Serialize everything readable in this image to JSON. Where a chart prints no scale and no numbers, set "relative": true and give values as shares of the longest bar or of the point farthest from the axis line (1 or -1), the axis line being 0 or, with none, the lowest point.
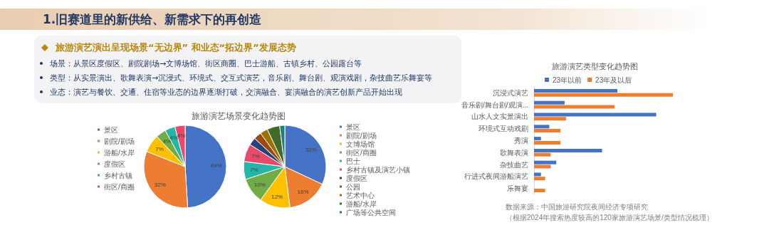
{
  "chart_data": [
    {
      "type": "other",
      "title": "1.旧赛道里的新供给、新需求下的再创造",
      "subtitle": "旅游演艺演出呈现场景“无边界” 和业态“拓边界”发展态势",
      "annotations": [
        "场景：从景区度假区、剧院剧场→文博场馆、街区商圈、巴士游船、古镇乡村、公园露台等",
        "类型：从实景演出、歌舞表演→沉浸式、环境式、交互式演艺，音乐剧、舞台剧、观演戏剧，杂技曲艺乐舞宴等",
        "业态：演艺与餐饮、交通、住宿等业态的边界逐渐打破，交演融合、宴演融合的演艺创新产品开始出现"
      ]
    },
    {
      "type": "pie",
      "title": "旅游演艺场景变化趋势图",
      "legend": "left",
      "categories": [
        "景区",
        "剧院/剧场",
        "游船/水岸",
        "度假区",
        "乡村古镇",
        "街区/商圈"
      ],
      "values": [
        49,
        32,
        7,
        4,
        4,
        4
      ],
      "colors": [
        "#4472c4",
        "#ed7d31",
        "#ffc000",
        "#70ad47",
        "#26b5a8",
        "#e94a6b"
      ],
      "value_labels": [
        "49%",
        "32%",
        "7%",
        "4%",
        "4%",
        "4%"
      ]
    },
    {
      "type": "pie",
      "legend": "right",
      "categories": [
        "景区",
        "剧院/剧场",
        "文博场馆",
        "街区/商圈",
        "巴士",
        "乡村古镇及演艺小镇",
        "度假区",
        "公园",
        "艺术中心",
        "游船/水岸",
        "广场等公共空间"
      ],
      "values": [
        32,
        16,
        12,
        10,
        7,
        7,
        3,
        3,
        3,
        5,
        2
      ],
      "value_labels": [
        "32%",
        "16%",
        "12%",
        "10%",
        "7%",
        "7%",
        null,
        null,
        null,
        null,
        null
      ],
      "colors": [
        "#4472c4",
        "#ed7d31",
        "#ffc000",
        "#70ad47",
        "#26b5a8",
        "#e94a6b",
        "#264478",
        "#9e480e",
        "#997300",
        "#43682b",
        "#1f7f7a"
      ]
    },
    {
      "type": "bar",
      "orientation": "horizontal",
      "relative": true,
      "title": "旅游演艺类型变化趋势图",
      "legend": "top",
      "categories": [
        "沉浸式演艺",
        "音乐剧/舞台剧/观演...",
        "山水人文实景演出",
        "环境式互动戏剧",
        "秀演",
        "歌舞表演",
        "杂技曲艺",
        "行进式夜间游船演艺",
        "乐舞宴"
      ],
      "series": [
        {
          "name": "23年以前",
          "color": "#4472c4",
          "values": [
            0.6,
            0.22,
            0.88,
            0.11,
            0.05,
            0.49,
            0.16,
            0.05,
            null
          ]
        },
        {
          "name": "23年及以后",
          "color": "#ed7d31",
          "values": [
            1,
            0.58,
            0.23,
            0.19,
            0.19,
            0.12,
            0.12,
            0.08,
            0.08
          ]
        }
      ],
      "annotations": [
        "数据来源：中国旅游研究院夜间经济专项研究",
        "（根据2024年搜索热度较高的120家旅游演艺场景/类型情况梳理）"
      ]
    }
  ]
}
